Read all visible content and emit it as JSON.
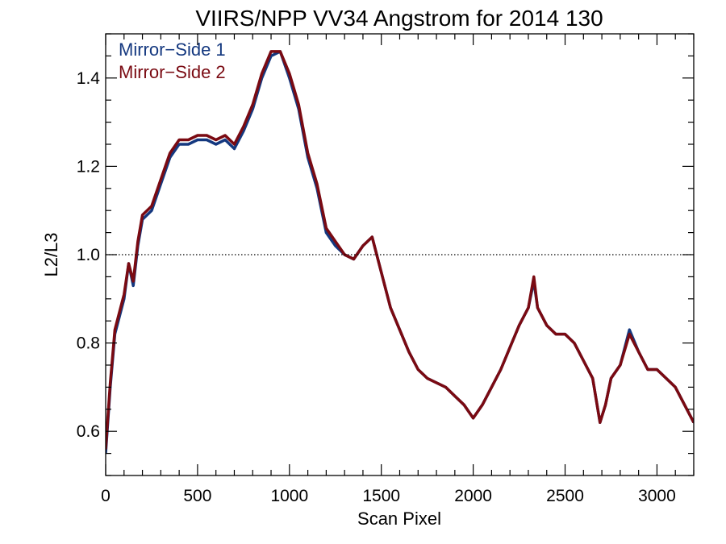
{
  "chart_data": {
    "type": "line",
    "title": "VIIRS/NPP VV34 Angstrom for 2014 130",
    "xlabel": "Scan Pixel",
    "ylabel": "L2/L3",
    "xlim": [
      0,
      3200
    ],
    "ylim": [
      0.5,
      1.5
    ],
    "x_ticks": [
      0,
      500,
      1000,
      1500,
      2000,
      2500,
      3000
    ],
    "x_tick_labels": [
      "0",
      "500",
      "1000",
      "1500",
      "2000",
      "2500",
      "3000"
    ],
    "y_ticks": [
      0.6,
      0.8,
      1.0,
      1.2,
      1.4
    ],
    "y_tick_labels": [
      "0.6",
      "0.8",
      "1.0",
      "1.2",
      "1.4"
    ],
    "reference_line": {
      "y": 1.0,
      "style": "dotted"
    },
    "legend_position": "top-left",
    "grid": false,
    "x": [
      0,
      25,
      50,
      75,
      100,
      125,
      150,
      175,
      200,
      250,
      300,
      350,
      400,
      450,
      500,
      550,
      600,
      650,
      700,
      750,
      800,
      850,
      900,
      950,
      1000,
      1050,
      1100,
      1150,
      1200,
      1250,
      1300,
      1350,
      1400,
      1450,
      1500,
      1550,
      1600,
      1650,
      1700,
      1750,
      1800,
      1850,
      1900,
      1950,
      2000,
      2050,
      2100,
      2150,
      2200,
      2250,
      2300,
      2330,
      2350,
      2400,
      2450,
      2500,
      2550,
      2600,
      2650,
      2690,
      2720,
      2750,
      2800,
      2850,
      2900,
      2950,
      3000,
      3050,
      3100,
      3150,
      3200
    ],
    "series": [
      {
        "name": "Mirror−Side 1",
        "color": "#14387f",
        "values": [
          0.55,
          0.7,
          0.82,
          0.86,
          0.9,
          0.98,
          0.93,
          1.02,
          1.08,
          1.1,
          1.16,
          1.22,
          1.25,
          1.25,
          1.26,
          1.26,
          1.25,
          1.26,
          1.24,
          1.28,
          1.33,
          1.4,
          1.45,
          1.46,
          1.4,
          1.33,
          1.22,
          1.15,
          1.05,
          1.02,
          1.0,
          0.99,
          1.02,
          1.04,
          0.96,
          0.88,
          0.83,
          0.78,
          0.74,
          0.72,
          0.71,
          0.7,
          0.68,
          0.66,
          0.63,
          0.66,
          0.7,
          0.74,
          0.79,
          0.84,
          0.88,
          0.94,
          0.88,
          0.84,
          0.82,
          0.82,
          0.8,
          0.76,
          0.72,
          0.62,
          0.66,
          0.72,
          0.75,
          0.83,
          0.78,
          0.74,
          0.74,
          0.72,
          0.7,
          0.66,
          0.62
        ]
      },
      {
        "name": "Mirror−Side 2",
        "color": "#7a0a12",
        "values": [
          0.56,
          0.71,
          0.83,
          0.87,
          0.91,
          0.98,
          0.94,
          1.03,
          1.09,
          1.11,
          1.17,
          1.23,
          1.26,
          1.26,
          1.27,
          1.27,
          1.26,
          1.27,
          1.25,
          1.29,
          1.34,
          1.41,
          1.46,
          1.46,
          1.41,
          1.34,
          1.23,
          1.16,
          1.06,
          1.03,
          1.0,
          0.99,
          1.02,
          1.04,
          0.96,
          0.88,
          0.83,
          0.78,
          0.74,
          0.72,
          0.71,
          0.7,
          0.68,
          0.66,
          0.63,
          0.66,
          0.7,
          0.74,
          0.79,
          0.84,
          0.88,
          0.95,
          0.88,
          0.84,
          0.82,
          0.82,
          0.8,
          0.76,
          0.72,
          0.62,
          0.66,
          0.72,
          0.75,
          0.82,
          0.78,
          0.74,
          0.74,
          0.72,
          0.7,
          0.66,
          0.62
        ]
      }
    ]
  }
}
